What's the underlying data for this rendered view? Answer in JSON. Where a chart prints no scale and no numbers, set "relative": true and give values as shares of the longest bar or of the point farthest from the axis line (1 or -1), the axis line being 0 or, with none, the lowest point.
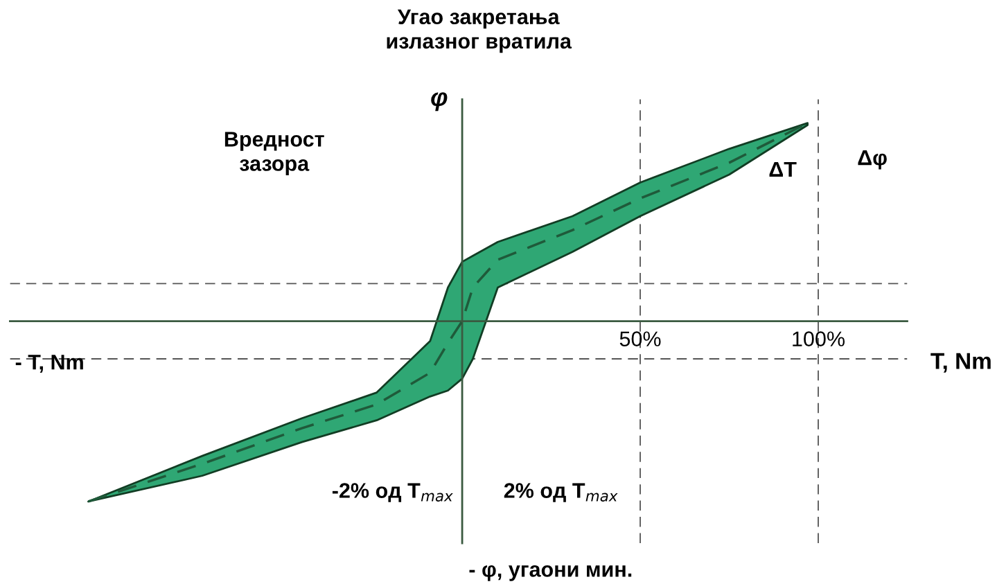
{
  "chart_data": {
    "type": "line",
    "relative": true,
    "title": "Угао закретања\nизлазног вратила",
    "xlabel": "T, Nm",
    "ylabel": "φ",
    "x": [
      -105,
      -73,
      -45,
      -24,
      -9,
      -4,
      0,
      3,
      10,
      31,
      50,
      75,
      97
    ],
    "series": [
      {
        "color": "#1f5a3a",
        "line_style": "dashed",
        "values": [
          -0.91,
          -0.72,
          -0.54,
          -0.42,
          -0.26,
          -0.11,
          0,
          0.17,
          0.31,
          0.46,
          0.62,
          0.8,
          1.0
        ],
        "upper": [
          -0.91,
          -0.68,
          -0.49,
          -0.36,
          -0.1,
          0.17,
          0.3,
          0.33,
          0.4,
          0.53,
          0.7,
          0.87,
          1.0
        ],
        "lower": [
          -0.91,
          -0.78,
          -0.61,
          -0.5,
          -0.38,
          -0.35,
          -0.29,
          -0.19,
          0.17,
          0.35,
          0.53,
          0.74,
          0.99
        ]
      }
    ],
    "xlim": [
      -127,
      125
    ],
    "xticks": [
      {
        "value": 50,
        "label": "50%"
      },
      {
        "value": 100,
        "label": "100%"
      }
    ],
    "ref_lines": [
      {
        "axis": "x",
        "value": 50,
        "line_style": "dashed",
        "color": "#555555"
      },
      {
        "axis": "x",
        "value": 100,
        "line_style": "dashed",
        "color": "#555555"
      },
      {
        "axis": "y",
        "value": 0.19,
        "line_style": "dashed",
        "color": "#555555"
      },
      {
        "axis": "y",
        "value": -0.19,
        "line_style": "dashed",
        "color": "#555555"
      }
    ],
    "annotations": [
      "Вредност\nзазора",
      "ΔT",
      "Δφ",
      "-2% од T$_{max}$",
      "2% од T$_{max}$",
      "- T, Nm",
      "- φ, угаони мин."
    ]
  }
}
